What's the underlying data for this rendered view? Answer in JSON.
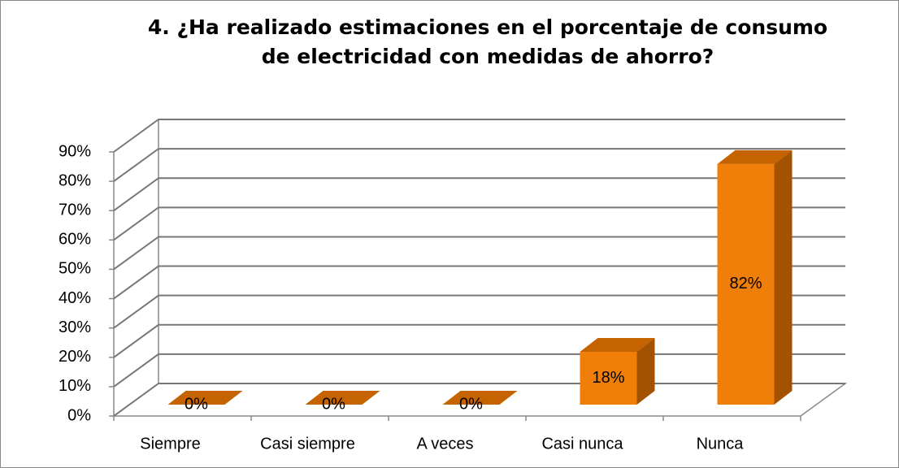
{
  "chart_data": {
    "type": "bar3d",
    "title": "4. ¿Ha realizado estimaciones en el porcentaje de consumo de electricidad con medidas de ahorro?",
    "categories": [
      "Siempre",
      "Casi siempre",
      "A veces",
      "Casi nunca",
      "Nunca"
    ],
    "values": [
      0,
      0,
      0,
      18,
      82
    ],
    "value_labels": [
      "0%",
      "0%",
      "0%",
      "18%",
      "82%"
    ],
    "color": "#f07f09",
    "ylim": [
      0,
      90
    ],
    "yticks": [
      {
        "value": 0,
        "label": "0%"
      },
      {
        "value": 10,
        "label": "10%"
      },
      {
        "value": 20,
        "label": "20%"
      },
      {
        "value": 30,
        "label": "30%"
      },
      {
        "value": 40,
        "label": "40%"
      },
      {
        "value": 50,
        "label": "50%"
      },
      {
        "value": 60,
        "label": "60%"
      },
      {
        "value": 70,
        "label": "70%"
      },
      {
        "value": 80,
        "label": "80%"
      },
      {
        "value": 90,
        "label": "90%"
      }
    ],
    "grid": true
  }
}
